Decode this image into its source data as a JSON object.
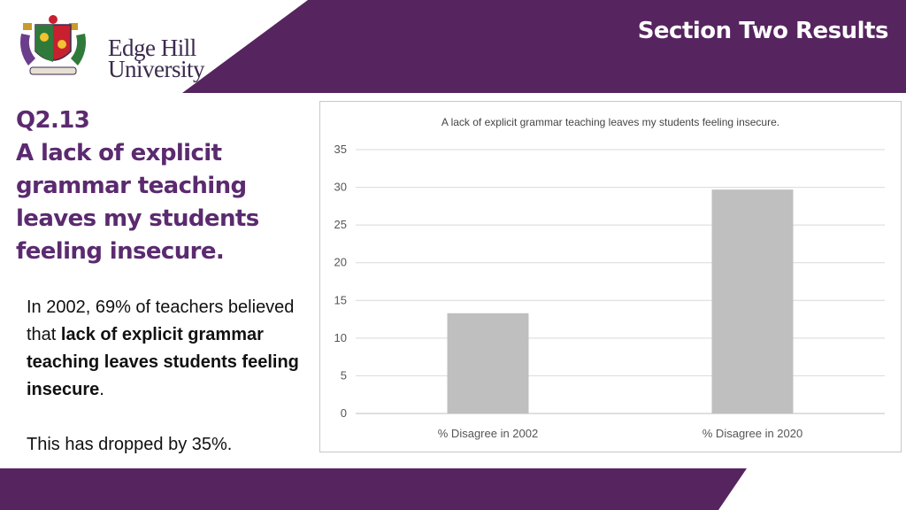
{
  "header": {
    "section_title": "Section Two Results",
    "logo": {
      "line1": "Edge Hill",
      "line2": "University",
      "crest_icon": "university-crest-icon"
    },
    "colors": {
      "brand_purple": "#56245f",
      "text_purple": "#5b2a6f"
    }
  },
  "question": {
    "number": "Q2.13",
    "text": "A lack of explicit grammar teaching leaves my students feeling insecure."
  },
  "body": {
    "para1_part1": "In 2002, 69% of teachers believed that ",
    "para1_bold": "lack of explicit grammar teaching leaves students feeling insecure",
    "para1_end": ".",
    "para2": "This has dropped by 35%."
  },
  "chart_data": {
    "type": "bar",
    "title": "A lack of explicit grammar teaching leaves my students feeling insecure.",
    "categories": [
      "% Disagree in 2002",
      "% Disagree in 2020"
    ],
    "values": [
      13.3,
      29.7
    ],
    "ylim": [
      0,
      35
    ],
    "yticks": [
      0,
      5,
      10,
      15,
      20,
      25,
      30,
      35
    ],
    "ytick_labels": [
      "0",
      "5",
      "10",
      "15",
      "20",
      "25",
      "30",
      "35"
    ],
    "grid": true,
    "bar_color": "#bfbfbf",
    "xlabel": "",
    "ylabel": ""
  }
}
